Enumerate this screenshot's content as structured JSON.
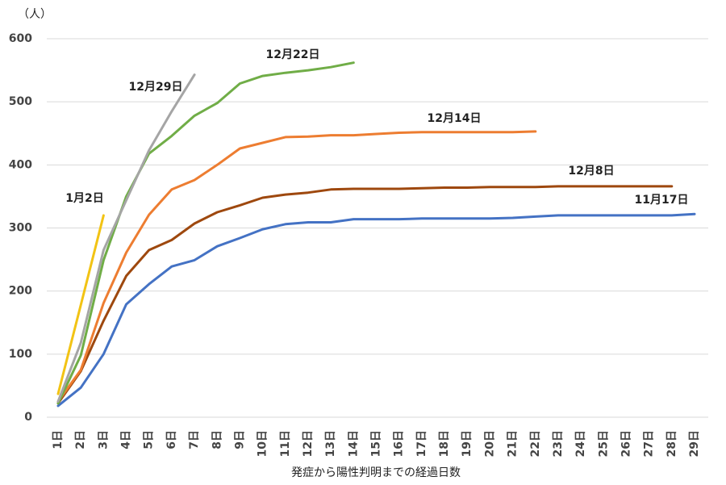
{
  "chart_data": {
    "type": "line",
    "y_axis_label": "（人）",
    "x_axis_label": "発症から陽性判明までの経過日数",
    "categories": [
      "1日",
      "2日",
      "3日",
      "4日",
      "5日",
      "6日",
      "7日",
      "8日",
      "9日",
      "10日",
      "11日",
      "12日",
      "13日",
      "14日",
      "15日",
      "16日",
      "17日",
      "18日",
      "19日",
      "20日",
      "21日",
      "22日",
      "23日",
      "24日",
      "25日",
      "26日",
      "27日",
      "28日",
      "29日"
    ],
    "ylim": [
      0,
      600
    ],
    "yticks": [
      0,
      100,
      200,
      300,
      400,
      500,
      600
    ],
    "grid": true,
    "series": [
      {
        "name": "11月17日",
        "color": "#4472c4",
        "values": [
          18,
          47,
          100,
          179,
          211,
          239,
          249,
          271,
          284,
          298,
          306,
          309,
          309,
          314,
          314,
          314,
          315,
          315,
          315,
          315,
          316,
          318,
          320,
          320,
          320,
          320,
          320,
          320,
          322
        ]
      },
      {
        "name": "12月8日",
        "color": "#9e480e",
        "values": [
          22,
          73,
          153,
          224,
          265,
          281,
          307,
          325,
          336,
          348,
          353,
          356,
          361,
          362,
          362,
          362,
          363,
          364,
          364,
          365,
          365,
          365,
          366,
          366,
          366,
          366,
          366,
          366,
          null
        ]
      },
      {
        "name": "12月14日",
        "color": "#ed7d31",
        "values": [
          25,
          75,
          181,
          261,
          321,
          361,
          376,
          400,
          426,
          435,
          444,
          445,
          447,
          447,
          449,
          451,
          452,
          452,
          452,
          452,
          452,
          453,
          null,
          null,
          null,
          null,
          null,
          null,
          null
        ]
      },
      {
        "name": "12月22日",
        "color": "#70ad47",
        "values": [
          22,
          98,
          249,
          350,
          418,
          446,
          478,
          498,
          529,
          541,
          546,
          550,
          555,
          562,
          null,
          null,
          null,
          null,
          null,
          null,
          null,
          null,
          null,
          null,
          null,
          null,
          null,
          null,
          null
        ]
      },
      {
        "name": "12月29日",
        "color": "#a5a5a5",
        "values": [
          25,
          118,
          265,
          344,
          423,
          485,
          543,
          null,
          null,
          null,
          null,
          null,
          null,
          null,
          null,
          null,
          null,
          null,
          null,
          null,
          null,
          null,
          null,
          null,
          null,
          null,
          null,
          null,
          null
        ]
      },
      {
        "name": "1月2日",
        "color": "#f2c314",
        "values": [
          37,
          178,
          320,
          null,
          null,
          null,
          null,
          null,
          null,
          null,
          null,
          null,
          null,
          null,
          null,
          null,
          null,
          null,
          null,
          null,
          null,
          null,
          null,
          null,
          null,
          null,
          null,
          null,
          null
        ]
      }
    ]
  }
}
